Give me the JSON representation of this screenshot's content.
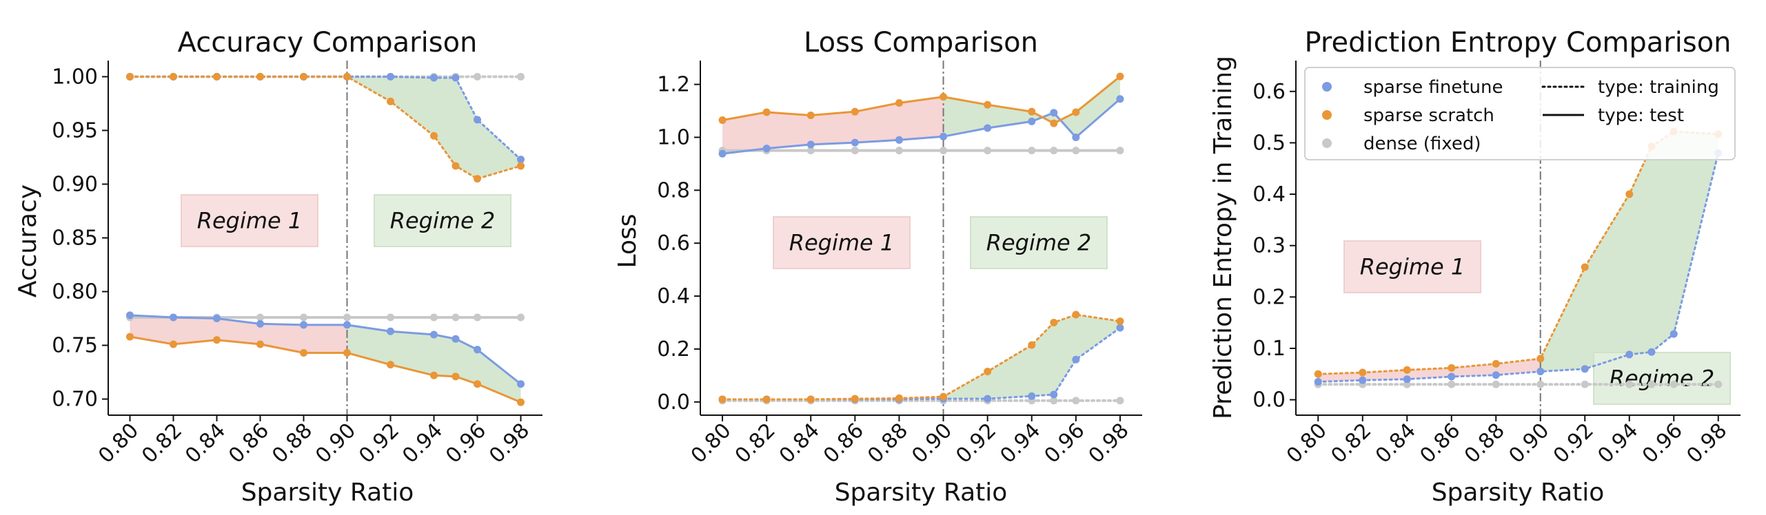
{
  "colors": {
    "finetune": "#7b9be2",
    "scratch": "#e99637",
    "dense": "#c8c8c8",
    "red_fill": "#efb3b3",
    "green_fill": "#b3d4a9",
    "red_box": "#f8e0e0",
    "green_box": "#e3efde",
    "divider": "#777777"
  },
  "chart_data": [
    {
      "type": "line",
      "title": "Accuracy Comparison",
      "xlabel": "Sparsity Ratio",
      "ylabel": "Accuracy",
      "x": [
        0.8,
        0.82,
        0.84,
        0.86,
        0.88,
        0.9,
        0.92,
        0.94,
        0.95,
        0.96,
        0.98
      ],
      "xlim": [
        0.79,
        0.99
      ],
      "ylim": [
        0.685,
        1.015
      ],
      "xticks": [
        "0.80",
        "0.82",
        "0.84",
        "0.86",
        "0.88",
        "0.90",
        "0.92",
        "0.94",
        "0.96",
        "0.98"
      ],
      "yticks": [
        "0.70",
        "0.75",
        "0.80",
        "0.85",
        "0.90",
        "0.95",
        "1.00"
      ],
      "divider_x": 0.9,
      "regimes": [
        "Regime 1",
        "Regime 2"
      ],
      "series": [
        {
          "name": "sparse finetune",
          "kind": "training",
          "values": [
            1.0,
            1.0,
            1.0,
            1.0,
            1.0,
            1.0,
            1.0,
            0.999,
            0.999,
            0.96,
            0.923
          ]
        },
        {
          "name": "sparse scratch",
          "kind": "training",
          "values": [
            1.0,
            1.0,
            1.0,
            1.0,
            1.0,
            1.0,
            0.977,
            0.945,
            0.917,
            0.905,
            0.917
          ]
        },
        {
          "name": "dense (fixed)",
          "kind": "training",
          "values": [
            1.0,
            1.0,
            1.0,
            1.0,
            1.0,
            1.0,
            1.0,
            1.0,
            1.0,
            1.0,
            1.0
          ]
        },
        {
          "name": "sparse finetune",
          "kind": "test",
          "values": [
            0.778,
            0.776,
            0.775,
            0.77,
            0.769,
            0.769,
            0.763,
            0.76,
            0.756,
            0.746,
            0.714
          ]
        },
        {
          "name": "sparse scratch",
          "kind": "test",
          "values": [
            0.758,
            0.751,
            0.755,
            0.751,
            0.743,
            0.743,
            0.732,
            0.722,
            0.721,
            0.714,
            0.697
          ]
        },
        {
          "name": "dense (fixed)",
          "kind": "test",
          "values": [
            0.776,
            0.776,
            0.776,
            0.776,
            0.776,
            0.776,
            0.776,
            0.776,
            0.776,
            0.776,
            0.776
          ]
        }
      ]
    },
    {
      "type": "line",
      "title": "Loss Comparison",
      "xlabel": "Sparsity Ratio",
      "ylabel": "Loss",
      "x": [
        0.8,
        0.82,
        0.84,
        0.86,
        0.88,
        0.9,
        0.92,
        0.94,
        0.95,
        0.96,
        0.98
      ],
      "xlim": [
        0.79,
        0.99
      ],
      "ylim": [
        -0.05,
        1.29
      ],
      "xticks": [
        "0.80",
        "0.82",
        "0.84",
        "0.86",
        "0.88",
        "0.90",
        "0.92",
        "0.94",
        "0.96",
        "0.98"
      ],
      "yticks": [
        "0.0",
        "0.2",
        "0.4",
        "0.6",
        "0.8",
        "1.0",
        "1.2"
      ],
      "divider_x": 0.9,
      "regimes": [
        "Regime 1",
        "Regime 2"
      ],
      "series": [
        {
          "name": "sparse finetune",
          "kind": "training",
          "values": [
            0.01,
            0.01,
            0.01,
            0.01,
            0.01,
            0.012,
            0.012,
            0.022,
            0.028,
            0.16,
            0.28
          ]
        },
        {
          "name": "sparse scratch",
          "kind": "training",
          "values": [
            0.01,
            0.01,
            0.01,
            0.012,
            0.014,
            0.02,
            0.115,
            0.215,
            0.3,
            0.33,
            0.305
          ]
        },
        {
          "name": "dense (fixed)",
          "kind": "training",
          "values": [
            0.005,
            0.005,
            0.005,
            0.005,
            0.005,
            0.005,
            0.005,
            0.005,
            0.005,
            0.005,
            0.005
          ]
        },
        {
          "name": "sparse finetune",
          "kind": "test",
          "values": [
            0.938,
            0.958,
            0.973,
            0.98,
            0.99,
            1.003,
            1.035,
            1.06,
            1.093,
            1.0,
            1.145
          ]
        },
        {
          "name": "sparse scratch",
          "kind": "test",
          "values": [
            1.065,
            1.095,
            1.083,
            1.097,
            1.13,
            1.153,
            1.123,
            1.097,
            1.053,
            1.095,
            1.23
          ]
        },
        {
          "name": "dense (fixed)",
          "kind": "test",
          "values": [
            0.95,
            0.95,
            0.95,
            0.95,
            0.95,
            0.95,
            0.95,
            0.95,
            0.95,
            0.95,
            0.95
          ]
        }
      ]
    },
    {
      "type": "line",
      "title": "Prediction Entropy Comparison",
      "xlabel": "Sparsity Ratio",
      "ylabel": "Prediction Entropy in Training",
      "x": [
        0.8,
        0.82,
        0.84,
        0.86,
        0.88,
        0.9,
        0.92,
        0.94,
        0.95,
        0.96,
        0.98
      ],
      "xlim": [
        0.79,
        0.99
      ],
      "ylim": [
        -0.03,
        0.66
      ],
      "xticks": [
        "0.80",
        "0.82",
        "0.84",
        "0.86",
        "0.88",
        "0.90",
        "0.92",
        "0.94",
        "0.96",
        "0.98"
      ],
      "yticks": [
        "0.0",
        "0.1",
        "0.2",
        "0.3",
        "0.4",
        "0.5",
        "0.6"
      ],
      "divider_x": 0.9,
      "regimes": [
        "Regime 1",
        "Regime 2"
      ],
      "series": [
        {
          "name": "sparse finetune",
          "kind": "training",
          "values": [
            0.035,
            0.038,
            0.04,
            0.045,
            0.048,
            0.055,
            0.06,
            0.088,
            0.093,
            0.128,
            0.48
          ]
        },
        {
          "name": "sparse scratch",
          "kind": "training",
          "values": [
            0.05,
            0.053,
            0.058,
            0.062,
            0.07,
            0.08,
            0.258,
            0.4,
            0.493,
            0.522,
            0.517
          ]
        },
        {
          "name": "dense (fixed)",
          "kind": "training",
          "values": [
            0.03,
            0.03,
            0.03,
            0.03,
            0.03,
            0.03,
            0.03,
            0.03,
            0.03,
            0.03,
            0.03
          ]
        }
      ],
      "legend": {
        "placement": "top",
        "entries": [
          "sparse finetune",
          "sparse scratch",
          "dense (fixed)"
        ],
        "line_types": [
          "type: training",
          "type: test"
        ]
      }
    }
  ]
}
